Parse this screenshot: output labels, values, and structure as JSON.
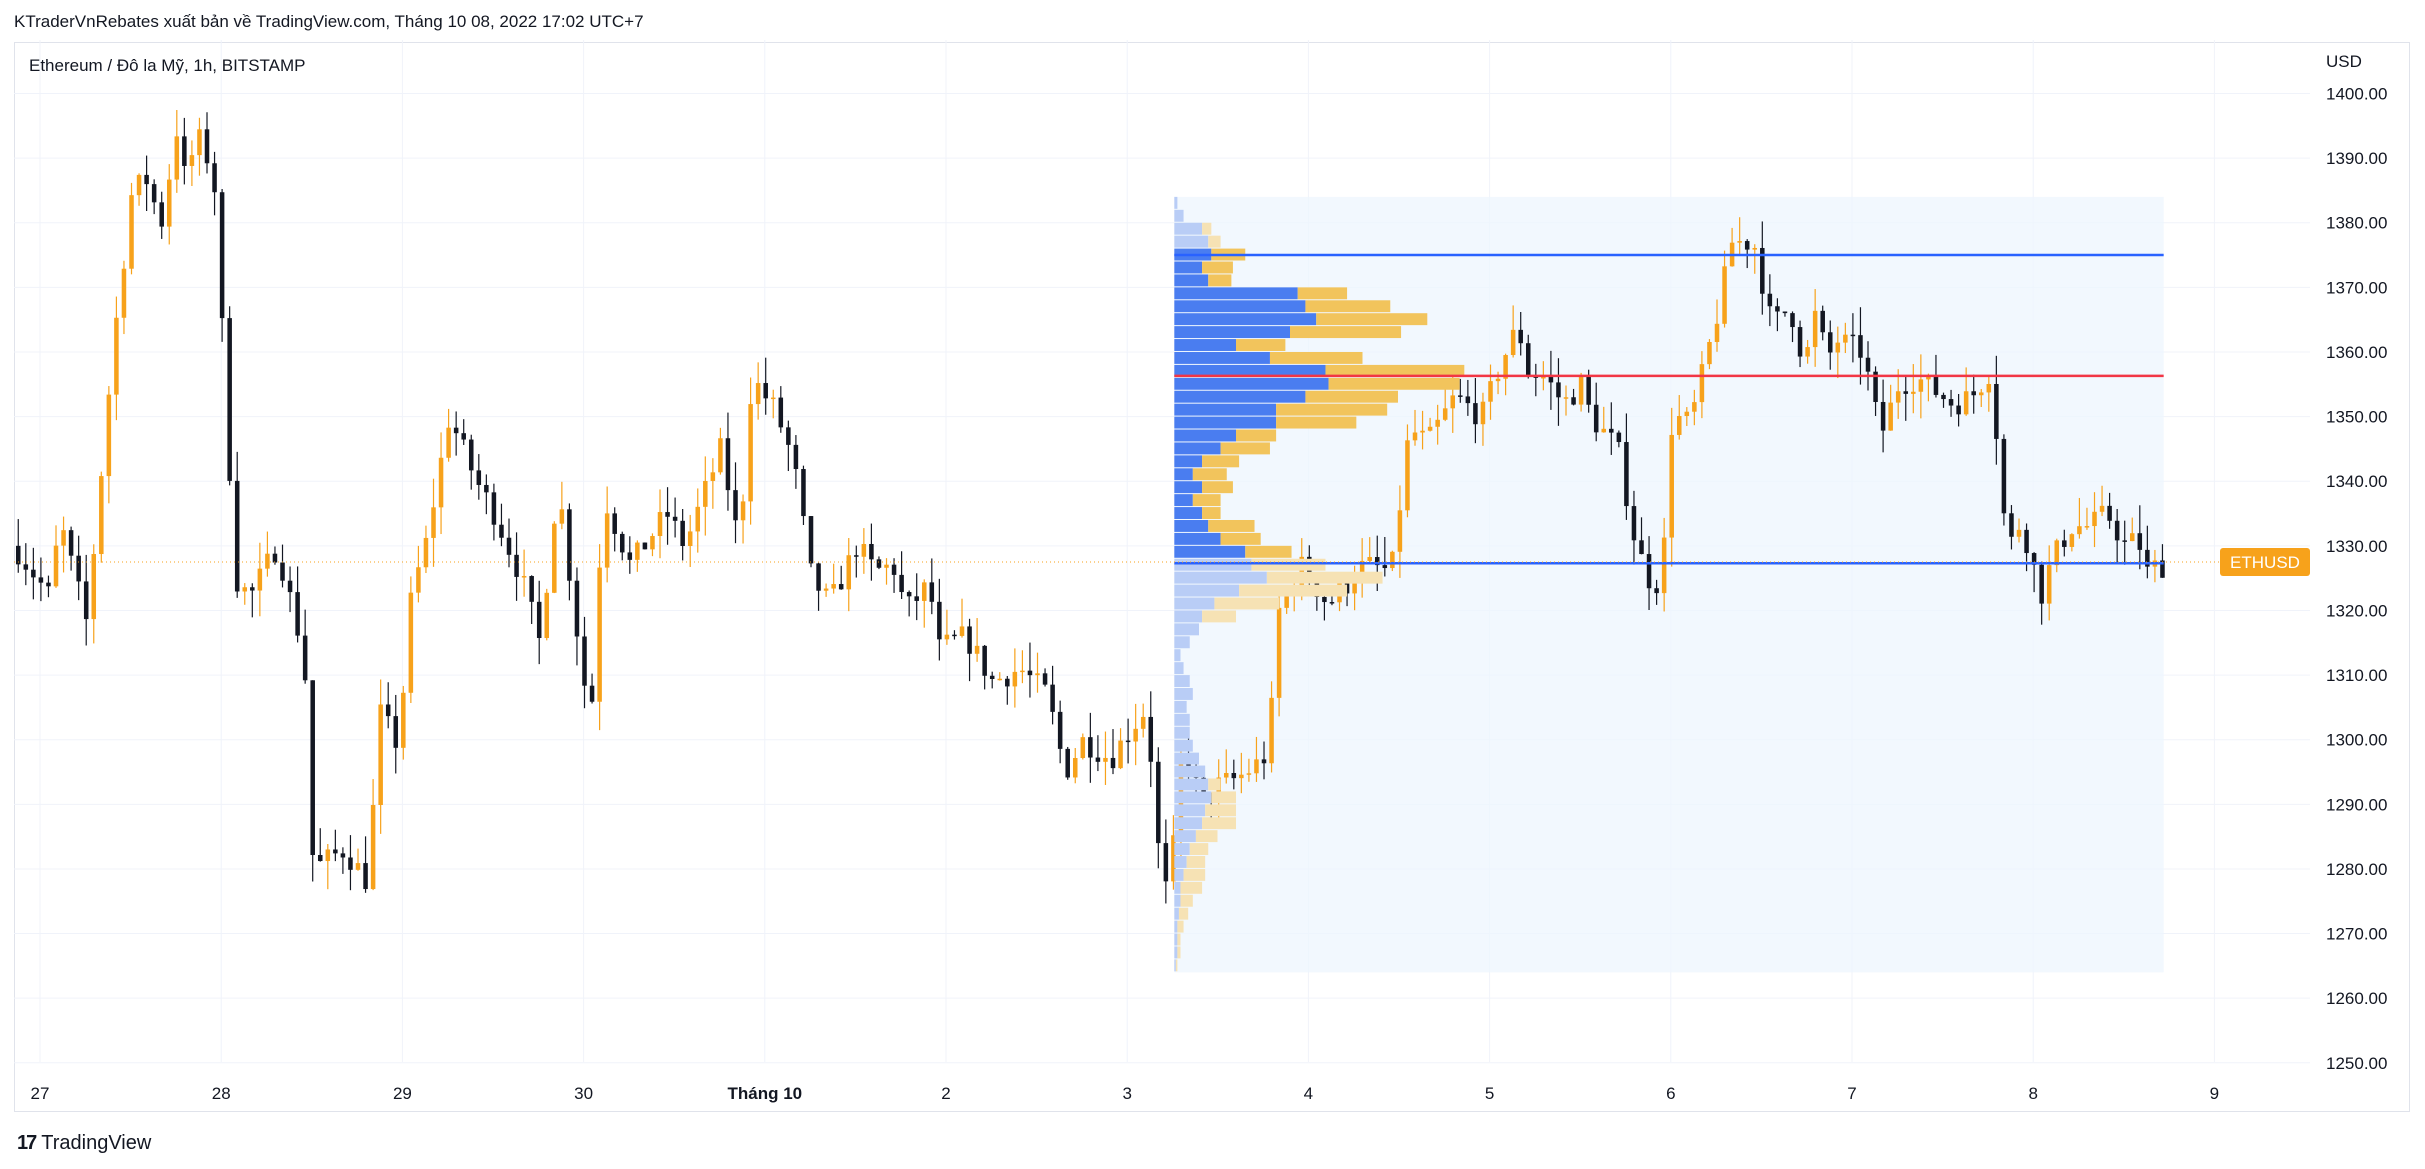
{
  "header": {
    "publisher": "KTraderVnRebates xuất bản về TradingView.com, Tháng 10 08, 2022 17:02 UTC+7"
  },
  "symbol": {
    "title": "Ethereum / Đô la Mỹ, 1h, BITSTAMP"
  },
  "price_axis": {
    "currency": "USD"
  },
  "footer": {
    "brand": "TradingView",
    "logo_glyph": "17"
  },
  "colors": {
    "up": "#f7a21b",
    "down": "#131722",
    "poc": "#f23645",
    "value_area": "#2962ff",
    "background_range": "#eef6fd"
  },
  "chart_data": {
    "type": "candlestick",
    "title": "Ethereum / Đô la Mỹ, 1h, BITSTAMP",
    "ylabel": "USD",
    "ylim": [
      1247,
      1404
    ],
    "grid": true,
    "y_ticks": [
      "1250.00",
      "1260.00",
      "1270.00",
      "1280.00",
      "1290.00",
      "1300.00",
      "1310.00",
      "1320.00",
      "1330.00",
      "1340.00",
      "1350.00",
      "1360.00",
      "1370.00",
      "1380.00",
      "1390.00",
      "1400.00"
    ],
    "x_labels": [
      {
        "label": "27",
        "day": 0
      },
      {
        "label": "28",
        "day": 1
      },
      {
        "label": "29",
        "day": 2
      },
      {
        "label": "30",
        "day": 3
      },
      {
        "label": "Tháng 10",
        "day": 4
      },
      {
        "label": "2",
        "day": 5
      },
      {
        "label": "3",
        "day": 6
      },
      {
        "label": "4",
        "day": 7
      },
      {
        "label": "5",
        "day": 8
      },
      {
        "label": "6",
        "day": 9
      },
      {
        "label": "7",
        "day": 10
      },
      {
        "label": "8",
        "day": 11
      },
      {
        "label": "9",
        "day": 12
      }
    ],
    "last_price_label": "ETHUSD",
    "last_price": 1327.5,
    "volume_profile": {
      "range_start_day": 6.26,
      "range_end_day": 11.72,
      "price_low": 1264,
      "price_high": 1384,
      "poc_price": 1356.3,
      "value_area_high": 1375.0,
      "value_area_low": 1327.3,
      "rows": [
        {
          "price": 1383,
          "down": 2,
          "up": 0
        },
        {
          "price": 1381,
          "down": 6,
          "up": 0
        },
        {
          "price": 1379,
          "down": 18,
          "up": 6
        },
        {
          "price": 1377,
          "down": 22,
          "up": 8
        },
        {
          "price": 1375,
          "down": 24,
          "up": 22
        },
        {
          "price": 1373,
          "down": 18,
          "up": 20
        },
        {
          "price": 1371,
          "down": 22,
          "up": 15
        },
        {
          "price": 1369,
          "down": 80,
          "up": 32
        },
        {
          "price": 1367,
          "down": 85,
          "up": 55
        },
        {
          "price": 1365,
          "down": 92,
          "up": 72
        },
        {
          "price": 1363,
          "down": 75,
          "up": 72
        },
        {
          "price": 1361,
          "down": 40,
          "up": 32
        },
        {
          "price": 1359,
          "down": 62,
          "up": 60
        },
        {
          "price": 1357,
          "down": 98,
          "up": 90
        },
        {
          "price": 1355,
          "down": 100,
          "up": 85
        },
        {
          "price": 1353,
          "down": 85,
          "up": 60
        },
        {
          "price": 1351,
          "down": 66,
          "up": 72
        },
        {
          "price": 1349,
          "down": 66,
          "up": 52
        },
        {
          "price": 1347,
          "down": 40,
          "up": 26
        },
        {
          "price": 1345,
          "down": 30,
          "up": 32
        },
        {
          "price": 1343,
          "down": 18,
          "up": 24
        },
        {
          "price": 1341,
          "down": 12,
          "up": 22
        },
        {
          "price": 1339,
          "down": 18,
          "up": 20
        },
        {
          "price": 1337,
          "down": 12,
          "up": 18
        },
        {
          "price": 1335,
          "down": 18,
          "up": 12
        },
        {
          "price": 1333,
          "down": 22,
          "up": 30
        },
        {
          "price": 1331,
          "down": 30,
          "up": 26
        },
        {
          "price": 1329,
          "down": 46,
          "up": 30
        },
        {
          "price": 1327,
          "down": 50,
          "up": 48
        },
        {
          "price": 1325,
          "down": 60,
          "up": 75
        },
        {
          "price": 1323,
          "down": 42,
          "up": 70
        },
        {
          "price": 1321,
          "down": 26,
          "up": 42
        },
        {
          "price": 1319,
          "down": 18,
          "up": 22
        },
        {
          "price": 1317,
          "down": 16,
          "up": 0
        },
        {
          "price": 1315,
          "down": 10,
          "up": 0
        },
        {
          "price": 1313,
          "down": 4,
          "up": 0
        },
        {
          "price": 1311,
          "down": 6,
          "up": 0
        },
        {
          "price": 1309,
          "down": 10,
          "up": 0
        },
        {
          "price": 1307,
          "down": 12,
          "up": 0
        },
        {
          "price": 1305,
          "down": 8,
          "up": 0
        },
        {
          "price": 1303,
          "down": 10,
          "up": 0
        },
        {
          "price": 1301,
          "down": 10,
          "up": 0
        },
        {
          "price": 1299,
          "down": 12,
          "up": 0
        },
        {
          "price": 1297,
          "down": 16,
          "up": 0
        },
        {
          "price": 1295,
          "down": 20,
          "up": 0
        },
        {
          "price": 1293,
          "down": 22,
          "up": 8
        },
        {
          "price": 1291,
          "down": 24,
          "up": 16
        },
        {
          "price": 1289,
          "down": 20,
          "up": 20
        },
        {
          "price": 1287,
          "down": 18,
          "up": 22
        },
        {
          "price": 1285,
          "down": 14,
          "up": 14
        },
        {
          "price": 1283,
          "down": 10,
          "up": 12
        },
        {
          "price": 1281,
          "down": 8,
          "up": 12
        },
        {
          "price": 1279,
          "down": 6,
          "up": 14
        },
        {
          "price": 1277,
          "down": 4,
          "up": 14
        },
        {
          "price": 1275,
          "down": 4,
          "up": 8
        },
        {
          "price": 1273,
          "down": 3,
          "up": 6
        },
        {
          "price": 1271,
          "down": 2,
          "up": 4
        },
        {
          "price": 1269,
          "down": 2,
          "up": 2
        },
        {
          "price": 1267,
          "down": 2,
          "up": 2
        },
        {
          "price": 1265,
          "down": 1,
          "up": 1
        }
      ]
    },
    "anchors": [
      [
        -0.1,
        1330
      ],
      [
        0.1,
        1322
      ],
      [
        0.15,
        1334
      ],
      [
        0.3,
        1318
      ],
      [
        0.45,
        1362
      ],
      [
        0.55,
        1385
      ],
      [
        0.65,
        1387
      ],
      [
        0.7,
        1378
      ],
      [
        0.8,
        1395
      ],
      [
        0.85,
        1385
      ],
      [
        0.9,
        1394
      ],
      [
        1.0,
        1388
      ],
      [
        1.05,
        1362
      ],
      [
        1.12,
        1325
      ],
      [
        1.2,
        1322
      ],
      [
        1.35,
        1330
      ],
      [
        1.5,
        1313
      ],
      [
        1.55,
        1280
      ],
      [
        1.72,
        1283
      ],
      [
        1.85,
        1278
      ],
      [
        1.92,
        1304
      ],
      [
        2.02,
        1299
      ],
      [
        2.1,
        1325
      ],
      [
        2.15,
        1327
      ],
      [
        2.3,
        1350
      ],
      [
        2.45,
        1340
      ],
      [
        2.55,
        1335
      ],
      [
        2.7,
        1325
      ],
      [
        2.8,
        1315
      ],
      [
        2.9,
        1340
      ],
      [
        3.0,
        1318
      ],
      [
        3.08,
        1302
      ],
      [
        3.15,
        1338
      ],
      [
        3.3,
        1327
      ],
      [
        3.5,
        1335
      ],
      [
        3.6,
        1330
      ],
      [
        3.8,
        1345
      ],
      [
        3.9,
        1330
      ],
      [
        3.97,
        1356
      ],
      [
        4.1,
        1351
      ],
      [
        4.2,
        1343
      ],
      [
        4.3,
        1325
      ],
      [
        4.4,
        1321
      ],
      [
        4.55,
        1330
      ],
      [
        4.65,
        1326
      ],
      [
        4.75,
        1327
      ],
      [
        4.82,
        1320
      ],
      [
        4.95,
        1324
      ],
      [
        5.0,
        1314
      ],
      [
        5.15,
        1316
      ],
      [
        5.3,
        1309
      ],
      [
        5.45,
        1311
      ],
      [
        5.6,
        1307
      ],
      [
        5.7,
        1295
      ],
      [
        5.8,
        1300
      ],
      [
        5.95,
        1297
      ],
      [
        6.07,
        1302
      ],
      [
        6.15,
        1305
      ],
      [
        6.22,
        1281
      ],
      [
        6.27,
        1275
      ],
      [
        6.35,
        1300
      ],
      [
        6.45,
        1290
      ],
      [
        6.55,
        1293
      ],
      [
        6.65,
        1294
      ],
      [
        6.75,
        1296
      ],
      [
        6.82,
        1298
      ],
      [
        6.88,
        1320
      ],
      [
        7.0,
        1327
      ],
      [
        7.1,
        1323
      ],
      [
        7.15,
        1321
      ],
      [
        7.25,
        1324
      ],
      [
        7.35,
        1327
      ],
      [
        7.5,
        1326
      ],
      [
        7.6,
        1348
      ],
      [
        7.7,
        1346
      ],
      [
        7.85,
        1353
      ],
      [
        8.0,
        1350
      ],
      [
        8.1,
        1358
      ],
      [
        8.2,
        1364
      ],
      [
        8.25,
        1357
      ],
      [
        8.35,
        1356
      ],
      [
        8.45,
        1352
      ],
      [
        8.55,
        1355
      ],
      [
        8.6,
        1350
      ],
      [
        8.75,
        1345
      ],
      [
        8.85,
        1330
      ],
      [
        8.95,
        1323
      ],
      [
        9.0,
        1328
      ],
      [
        9.05,
        1350
      ],
      [
        9.15,
        1349
      ],
      [
        9.3,
        1366
      ],
      [
        9.38,
        1377
      ],
      [
        9.5,
        1377
      ],
      [
        9.6,
        1364
      ],
      [
        9.7,
        1367
      ],
      [
        9.78,
        1358
      ],
      [
        9.85,
        1367
      ],
      [
        9.9,
        1358
      ],
      [
        9.95,
        1362
      ],
      [
        10.1,
        1360
      ],
      [
        10.2,
        1347
      ],
      [
        10.3,
        1355
      ],
      [
        10.4,
        1356
      ],
      [
        10.55,
        1353
      ],
      [
        10.6,
        1352
      ],
      [
        10.7,
        1353
      ],
      [
        10.8,
        1357
      ],
      [
        10.85,
        1345
      ],
      [
        10.9,
        1328
      ],
      [
        10.95,
        1334
      ],
      [
        11.02,
        1330
      ],
      [
        11.08,
        1322
      ],
      [
        11.15,
        1328
      ],
      [
        11.25,
        1333
      ],
      [
        11.35,
        1333
      ],
      [
        11.45,
        1335
      ],
      [
        11.55,
        1330
      ],
      [
        11.62,
        1331
      ],
      [
        11.68,
        1325
      ],
      [
        11.72,
        1327
      ]
    ]
  }
}
